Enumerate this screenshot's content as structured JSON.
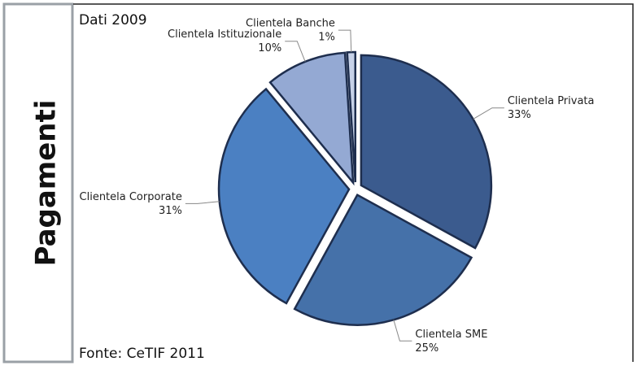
{
  "side_label": "Pagamenti",
  "chart_data": {
    "type": "pie",
    "title": "Dati 2009",
    "source": "Fonte: CeTIF 2011",
    "categories": [
      "Clientela Privata",
      "Clientela SME",
      "Clientela Corporate",
      "Clientela Istituzionale",
      "Clientela Banche"
    ],
    "values": [
      33,
      25,
      31,
      10,
      1
    ],
    "value_labels": [
      "33%",
      "25%",
      "31%",
      "10%",
      "1%"
    ],
    "colors": [
      "#3b5b8e",
      "#4571a9",
      "#4b80c2",
      "#94a9d3",
      "#c7d2e8"
    ]
  }
}
